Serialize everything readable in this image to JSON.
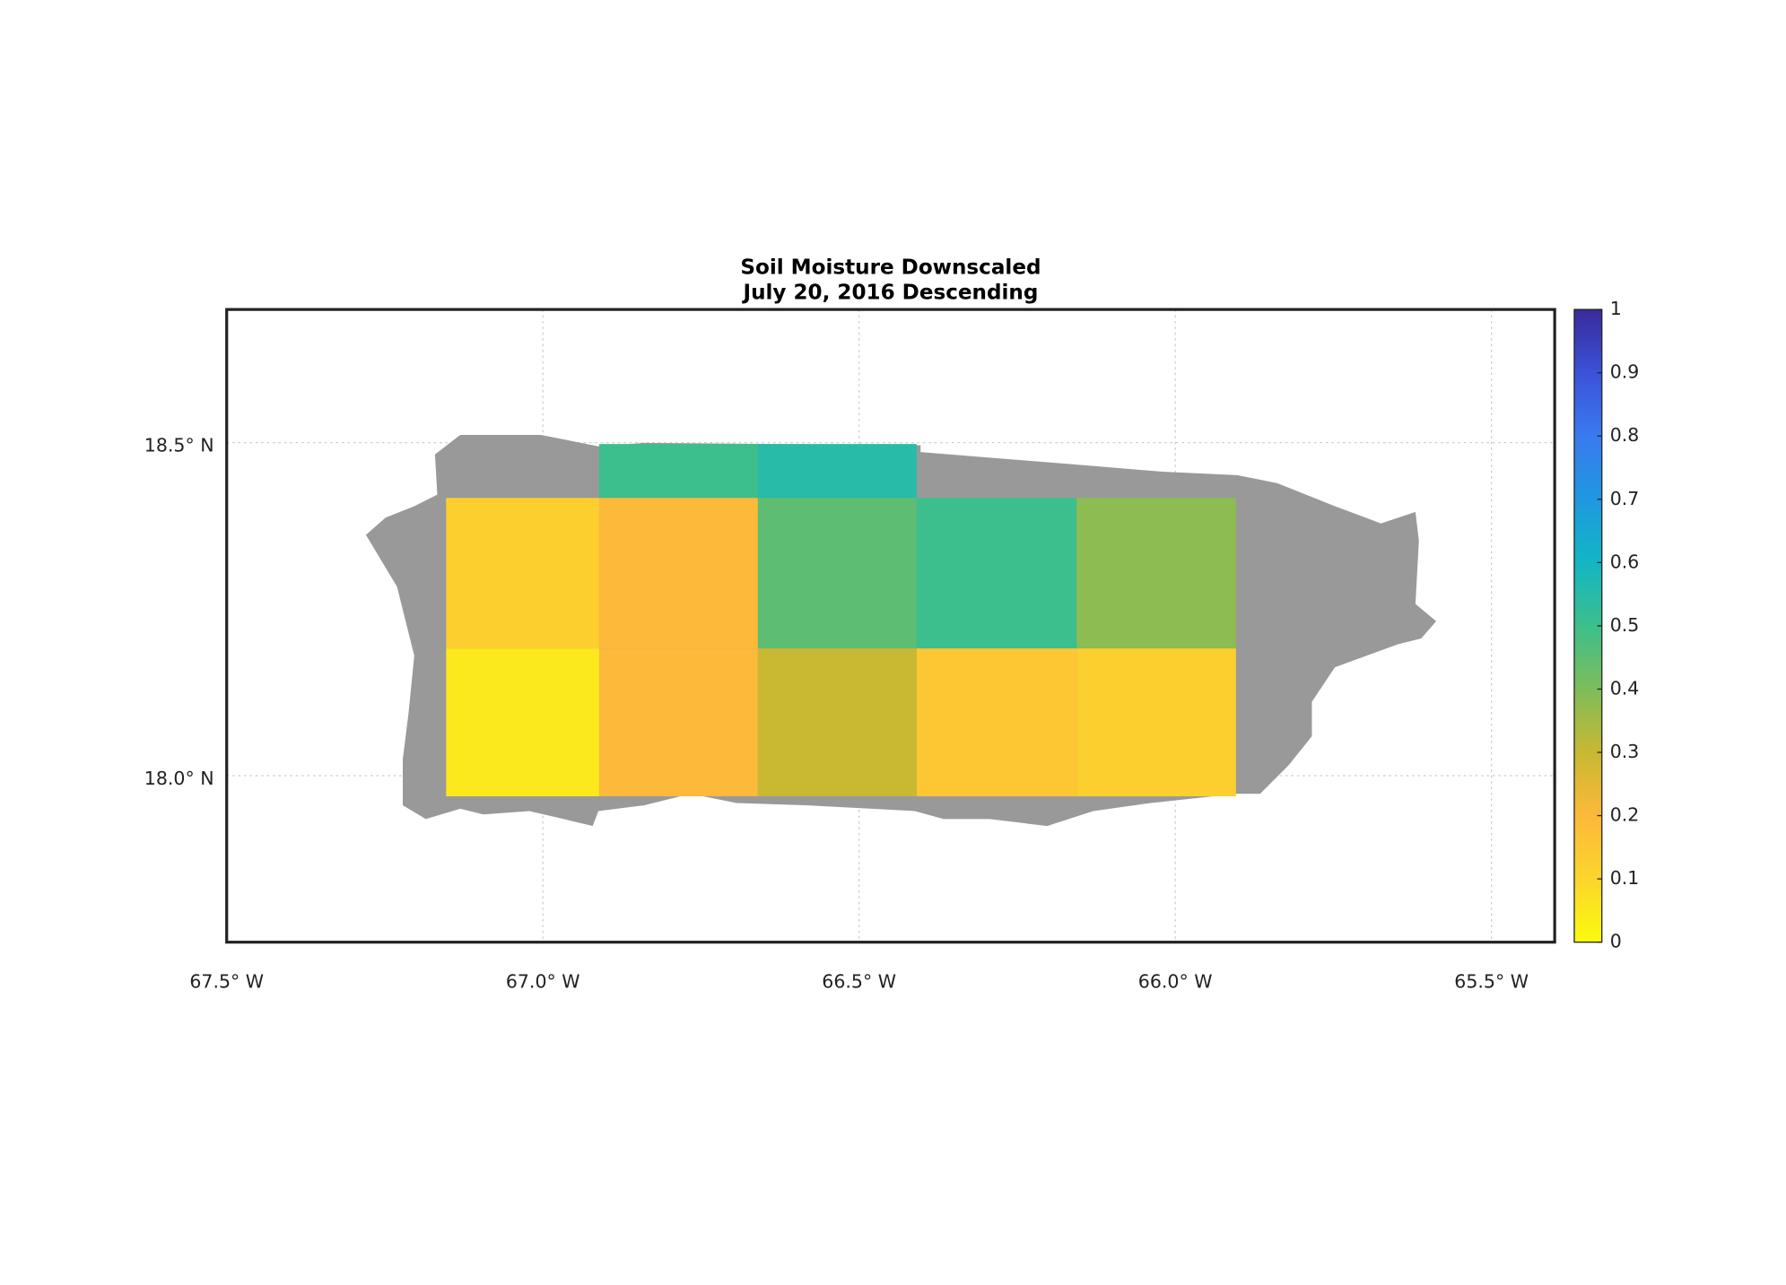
{
  "chart_data": {
    "type": "heatmap",
    "title": "Soil Moisture Downscaled",
    "subtitle": "July 20, 2016 Descending",
    "xlim": [
      -67.5,
      -65.4
    ],
    "ylim": [
      17.75,
      18.7
    ],
    "xticks": [
      {
        "value": -67.5,
        "label": "67.5° W"
      },
      {
        "value": -67.0,
        "label": "67.0° W"
      },
      {
        "value": -66.5,
        "label": "66.5° W"
      },
      {
        "value": -66.0,
        "label": "66.0° W"
      },
      {
        "value": -65.5,
        "label": "65.5° W"
      }
    ],
    "yticks": [
      {
        "value": 18.0,
        "label": "18.0° N"
      },
      {
        "value": 18.5,
        "label": "18.5° N"
      }
    ],
    "grid": true,
    "lon_edges": [
      -67.153,
      -66.911,
      -66.66,
      -66.409,
      -66.156,
      -65.904
    ],
    "lat_edges": [
      18.498,
      18.417,
      18.191,
      17.969
    ],
    "values": [
      [
        null,
        0.5,
        0.55,
        null,
        null
      ],
      [
        0.12,
        0.2,
        0.45,
        0.5,
        0.38
      ],
      [
        0.05,
        0.2,
        0.3,
        0.15,
        0.12
      ]
    ],
    "clim": [
      0,
      1
    ],
    "colorbar_ticks": [
      0,
      0.1,
      0.2,
      0.3,
      0.4,
      0.5,
      0.6,
      0.7,
      0.8,
      0.9,
      1
    ],
    "colormap": [
      "#f9fb0e",
      "#fcd52c",
      "#fcb93a",
      "#c8b832",
      "#7dbd5a",
      "#3cbf8c",
      "#12b6c4",
      "#1f98df",
      "#3a7af0",
      "#3b52d8",
      "#3a2a9a"
    ]
  }
}
